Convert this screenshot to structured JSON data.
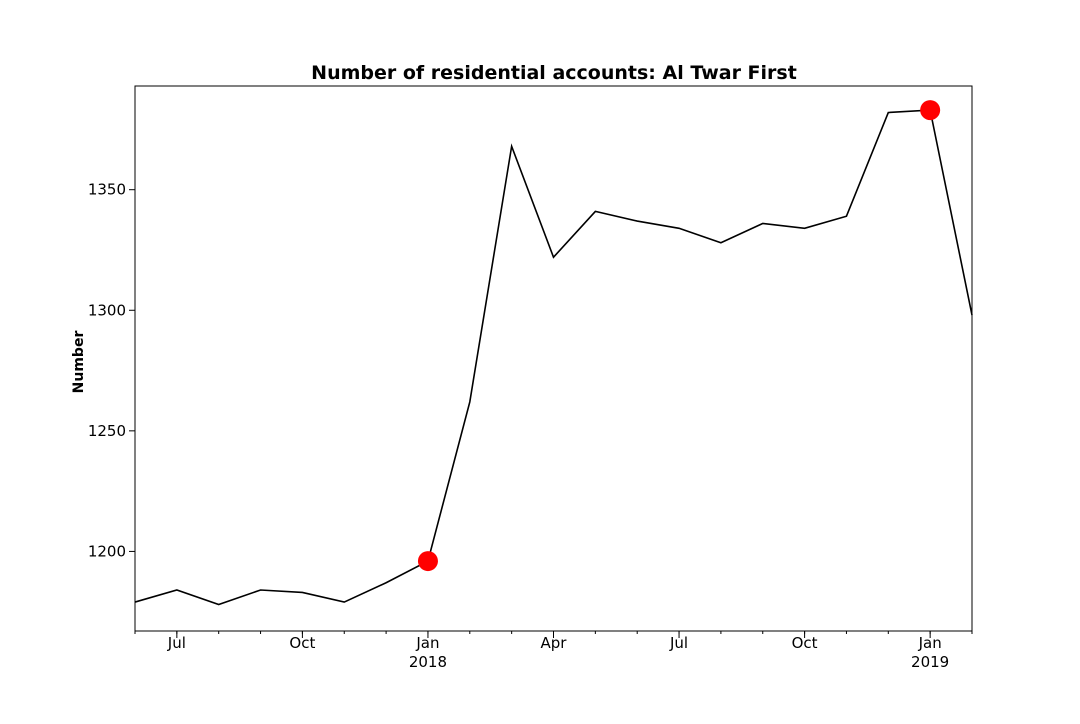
{
  "chart_data": {
    "type": "line",
    "title": "Number of residential accounts: Al Twar First",
    "xlabel": "",
    "ylabel": "Number",
    "x": [
      "2017-06",
      "2017-07",
      "2017-08",
      "2017-09",
      "2017-10",
      "2017-11",
      "2017-12",
      "2018-01",
      "2018-02",
      "2018-03",
      "2018-04",
      "2018-05",
      "2018-06",
      "2018-07",
      "2018-08",
      "2018-09",
      "2018-10",
      "2018-11",
      "2018-12",
      "2019-01",
      "2019-02"
    ],
    "series": [
      {
        "values": [
          1179,
          1184,
          1178,
          1184,
          1183,
          1179,
          1187,
          1196,
          1262,
          1368,
          1322,
          1341,
          1337,
          1334,
          1328,
          1336,
          1334,
          1339,
          1382,
          1383,
          1298
        ]
      }
    ],
    "highlighted_points": [
      {
        "x": "2018-01",
        "y": 1196
      },
      {
        "x": "2019-01",
        "y": 1383
      }
    ],
    "line_color": "#000000",
    "marker_color": "#ff0000",
    "ylim": [
      1167,
      1393
    ],
    "y_ticks": [
      1200,
      1250,
      1300,
      1350
    ],
    "x_ticks": [
      {
        "x": "2017-07",
        "label": "Jul",
        "sublabel": ""
      },
      {
        "x": "2017-10",
        "label": "Oct",
        "sublabel": ""
      },
      {
        "x": "2018-01",
        "label": "Jan",
        "sublabel": "2018"
      },
      {
        "x": "2018-04",
        "label": "Apr",
        "sublabel": ""
      },
      {
        "x": "2018-07",
        "label": "Jul",
        "sublabel": ""
      },
      {
        "x": "2018-10",
        "label": "Oct",
        "sublabel": ""
      },
      {
        "x": "2019-01",
        "label": "Jan",
        "sublabel": "2019"
      }
    ],
    "grid": false,
    "legend": "none"
  }
}
